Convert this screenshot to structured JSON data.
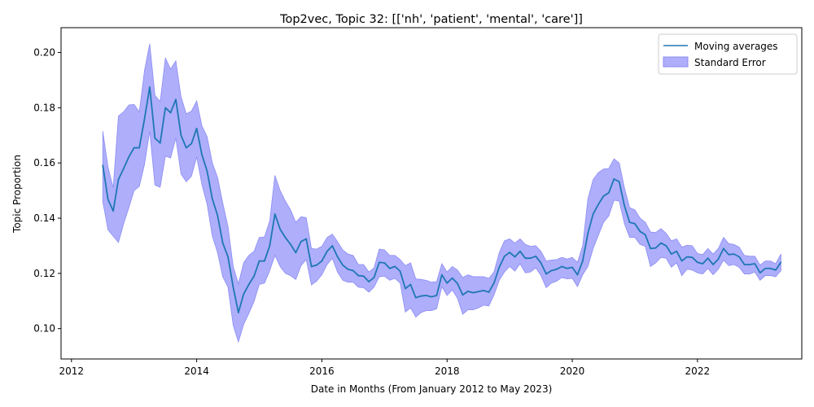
{
  "chart_data": {
    "type": "line",
    "title": "Top2vec, Topic 32: [['nh', 'patient', 'mental', 'care']]",
    "xlabel": "Date in Months (From January 2012 to May 2023)",
    "ylabel": "Topic Proportion",
    "xlim": [
      "2011-11",
      "2023-09"
    ],
    "ylim": [
      0.089,
      0.209
    ],
    "x_ticks": [
      "2012",
      "2014",
      "2016",
      "2018",
      "2020",
      "2022"
    ],
    "y_ticks": [
      "0.10",
      "0.12",
      "0.14",
      "0.16",
      "0.18",
      "0.20"
    ],
    "grid": false,
    "legend": {
      "position": "top-right",
      "entries": [
        "Moving averages",
        "Standard Error"
      ]
    },
    "colors": {
      "line": "#1f77b4",
      "band": "#aeaefb",
      "band_edge": "#8c8cf5"
    },
    "series": [
      {
        "name": "Moving averages",
        "x": [
          "2012-07",
          "2012-08",
          "2012-09",
          "2012-10",
          "2012-11",
          "2012-12",
          "2013-01",
          "2013-02",
          "2013-03",
          "2013-04",
          "2013-05",
          "2013-06",
          "2013-07",
          "2013-08",
          "2013-09",
          "2013-10",
          "2013-11",
          "2013-12",
          "2014-01",
          "2014-02",
          "2014-03",
          "2014-04",
          "2014-05",
          "2014-06",
          "2014-07",
          "2014-08",
          "2014-09",
          "2014-10",
          "2014-11",
          "2014-12",
          "2015-01",
          "2015-02",
          "2015-03",
          "2015-04",
          "2015-05",
          "2015-06",
          "2015-07",
          "2015-08",
          "2015-09",
          "2015-10",
          "2015-11",
          "2015-12",
          "2016-01",
          "2016-02",
          "2016-03",
          "2016-04",
          "2016-05",
          "2016-06",
          "2016-07",
          "2016-08",
          "2016-09",
          "2016-10",
          "2016-11",
          "2016-12",
          "2017-01",
          "2017-02",
          "2017-03",
          "2017-04",
          "2017-05",
          "2017-06",
          "2017-07",
          "2017-08",
          "2017-09",
          "2017-10",
          "2017-11",
          "2017-12",
          "2018-01",
          "2018-02",
          "2018-03",
          "2018-04",
          "2018-05",
          "2018-06",
          "2018-07",
          "2018-08",
          "2018-09",
          "2018-10",
          "2018-11",
          "2018-12",
          "2019-01",
          "2019-02",
          "2019-03",
          "2019-04",
          "2019-05",
          "2019-06",
          "2019-07",
          "2019-08",
          "2019-09",
          "2019-10",
          "2019-11",
          "2019-12",
          "2020-01",
          "2020-02",
          "2020-03",
          "2020-04",
          "2020-05",
          "2020-06",
          "2020-07",
          "2020-08",
          "2020-09",
          "2020-10",
          "2020-11",
          "2020-12",
          "2021-01",
          "2021-02",
          "2021-03",
          "2021-04",
          "2021-05",
          "2021-06",
          "2021-07",
          "2021-08",
          "2021-09",
          "2021-10",
          "2021-11",
          "2021-12",
          "2022-01",
          "2022-02",
          "2022-03",
          "2022-04",
          "2022-05",
          "2022-06",
          "2022-07",
          "2022-08",
          "2022-09",
          "2022-10",
          "2022-11",
          "2022-12",
          "2023-01",
          "2023-02",
          "2023-03",
          "2023-04",
          "2023-05"
        ],
        "y": [
          0.1592,
          0.1468,
          0.1426,
          0.154,
          0.158,
          0.1622,
          0.1655,
          0.1655,
          0.176,
          0.1875,
          0.169,
          0.1672,
          0.18,
          0.1782,
          0.183,
          0.17,
          0.1655,
          0.167,
          0.1725,
          0.163,
          0.157,
          0.147,
          0.141,
          0.131,
          0.126,
          0.115,
          0.1058,
          0.1125,
          0.116,
          0.119,
          0.1245,
          0.1245,
          0.13,
          0.1415,
          0.136,
          0.133,
          0.1305,
          0.1275,
          0.1315,
          0.1325,
          0.1225,
          0.123,
          0.1245,
          0.128,
          0.13,
          0.126,
          0.123,
          0.1215,
          0.121,
          0.1192,
          0.119,
          0.117,
          0.1185,
          0.124,
          0.1238,
          0.1218,
          0.1225,
          0.1208,
          0.1145,
          0.116,
          0.1112,
          0.1118,
          0.112,
          0.1115,
          0.112,
          0.1195,
          0.1165,
          0.1183,
          0.1163,
          0.1122,
          0.1135,
          0.113,
          0.1134,
          0.1138,
          0.1132,
          0.1165,
          0.1222,
          0.1262,
          0.1276,
          0.126,
          0.128,
          0.1255,
          0.1255,
          0.1262,
          0.1238,
          0.1198,
          0.121,
          0.1215,
          0.1225,
          0.1218,
          0.1222,
          0.1195,
          0.1245,
          0.1345,
          0.1415,
          0.145,
          0.148,
          0.1492,
          0.1542,
          0.1532,
          0.1445,
          0.1385,
          0.138,
          0.1352,
          0.134,
          0.129,
          0.1292,
          0.131,
          0.13,
          0.127,
          0.128,
          0.1245,
          0.126,
          0.1258,
          0.124,
          0.1235,
          0.1255,
          0.1232,
          0.1252,
          0.129,
          0.1268,
          0.127,
          0.126,
          0.1232,
          0.1232,
          0.1235,
          0.1202,
          0.1218,
          0.1218,
          0.1212,
          0.124
        ]
      },
      {
        "name": "Standard Error",
        "x": [
          "2012-07",
          "2012-08",
          "2012-09",
          "2012-10",
          "2012-11",
          "2012-12",
          "2013-01",
          "2013-02",
          "2013-03",
          "2013-04",
          "2013-05",
          "2013-06",
          "2013-07",
          "2013-08",
          "2013-09",
          "2013-10",
          "2013-11",
          "2013-12",
          "2014-01",
          "2014-02",
          "2014-03",
          "2014-04",
          "2014-05",
          "2014-06",
          "2014-07",
          "2014-08",
          "2014-09",
          "2014-10",
          "2014-11",
          "2014-12",
          "2015-01",
          "2015-02",
          "2015-03",
          "2015-04",
          "2015-05",
          "2015-06",
          "2015-07",
          "2015-08",
          "2015-09",
          "2015-10",
          "2015-11",
          "2015-12",
          "2016-01",
          "2016-02",
          "2016-03",
          "2016-04",
          "2016-05",
          "2016-06",
          "2016-07",
          "2016-08",
          "2016-09",
          "2016-10",
          "2016-11",
          "2016-12",
          "2017-01",
          "2017-02",
          "2017-03",
          "2017-04",
          "2017-05",
          "2017-06",
          "2017-07",
          "2017-08",
          "2017-09",
          "2017-10",
          "2017-11",
          "2017-12",
          "2018-01",
          "2018-02",
          "2018-03",
          "2018-04",
          "2018-05",
          "2018-06",
          "2018-07",
          "2018-08",
          "2018-09",
          "2018-10",
          "2018-11",
          "2018-12",
          "2019-01",
          "2019-02",
          "2019-03",
          "2019-04",
          "2019-05",
          "2019-06",
          "2019-07",
          "2019-08",
          "2019-09",
          "2019-10",
          "2019-11",
          "2019-12",
          "2020-01",
          "2020-02",
          "2020-03",
          "2020-04",
          "2020-05",
          "2020-06",
          "2020-07",
          "2020-08",
          "2020-09",
          "2020-10",
          "2020-11",
          "2020-12",
          "2021-01",
          "2021-02",
          "2021-03",
          "2021-04",
          "2021-05",
          "2021-06",
          "2021-07",
          "2021-08",
          "2021-09",
          "2021-10",
          "2021-11",
          "2021-12",
          "2022-01",
          "2022-02",
          "2022-03",
          "2022-04",
          "2022-05",
          "2022-06",
          "2022-07",
          "2022-08",
          "2022-09",
          "2022-10",
          "2022-11",
          "2022-12",
          "2023-01",
          "2023-02",
          "2023-03",
          "2023-04",
          "2023-05"
        ],
        "upper": [
          0.1715,
          0.1585,
          0.151,
          0.177,
          0.1785,
          0.181,
          0.1812,
          0.1785,
          0.1935,
          0.2032,
          0.1845,
          0.1822,
          0.198,
          0.194,
          0.197,
          0.184,
          0.1778,
          0.1788,
          0.1825,
          0.1735,
          0.1695,
          0.16,
          0.1548,
          0.1455,
          0.137,
          0.1225,
          0.1162,
          0.1238,
          0.1265,
          0.128,
          0.133,
          0.1332,
          0.139,
          0.1555,
          0.15,
          0.1462,
          0.143,
          0.1385,
          0.1405,
          0.1402,
          0.129,
          0.1288,
          0.1298,
          0.133,
          0.1342,
          0.1315,
          0.1285,
          0.127,
          0.1265,
          0.1232,
          0.1232,
          0.1205,
          0.122,
          0.1288,
          0.1285,
          0.1265,
          0.1265,
          0.125,
          0.1228,
          0.1238,
          0.118,
          0.1178,
          0.1175,
          0.1168,
          0.117,
          0.1235,
          0.1205,
          0.1225,
          0.1212,
          0.1185,
          0.1195,
          0.1188,
          0.1188,
          0.1188,
          0.1182,
          0.1205,
          0.1275,
          0.1318,
          0.1325,
          0.131,
          0.1325,
          0.1305,
          0.1298,
          0.13,
          0.128,
          0.1245,
          0.1248,
          0.125,
          0.1258,
          0.1252,
          0.1258,
          0.124,
          0.13,
          0.147,
          0.154,
          0.1565,
          0.1578,
          0.158,
          0.1615,
          0.16,
          0.151,
          0.1438,
          0.143,
          0.14,
          0.1385,
          0.135,
          0.1348,
          0.1362,
          0.1345,
          0.1318,
          0.1325,
          0.1295,
          0.1302,
          0.13,
          0.1272,
          0.1268,
          0.129,
          0.127,
          0.129,
          0.133,
          0.1308,
          0.1305,
          0.1295,
          0.1265,
          0.1262,
          0.1262,
          0.123,
          0.1245,
          0.1245,
          0.1235,
          0.127
        ],
        "lower": [
          0.146,
          0.1358,
          0.1335,
          0.1312,
          0.138,
          0.1438,
          0.15,
          0.1515,
          0.1595,
          0.1715,
          0.152,
          0.1512,
          0.1625,
          0.1618,
          0.169,
          0.156,
          0.1532,
          0.1552,
          0.1622,
          0.1522,
          0.145,
          0.1335,
          0.1275,
          0.1188,
          0.115,
          0.1012,
          0.0952,
          0.1015,
          0.1055,
          0.1098,
          0.116,
          0.1165,
          0.121,
          0.1265,
          0.1225,
          0.12,
          0.1192,
          0.1178,
          0.1228,
          0.125,
          0.1158,
          0.1172,
          0.1195,
          0.1232,
          0.1255,
          0.1205,
          0.1175,
          0.1168,
          0.1168,
          0.115,
          0.1148,
          0.1132,
          0.115,
          0.1188,
          0.119,
          0.1175,
          0.1182,
          0.1165,
          0.106,
          0.1075,
          0.1042,
          0.1058,
          0.1065,
          0.1065,
          0.1072,
          0.1152,
          0.112,
          0.114,
          0.111,
          0.1052,
          0.1068,
          0.1068,
          0.1075,
          0.1085,
          0.1082,
          0.1122,
          0.1175,
          0.1205,
          0.1225,
          0.1208,
          0.1235,
          0.1202,
          0.1205,
          0.122,
          0.1192,
          0.1148,
          0.1165,
          0.1172,
          0.1185,
          0.118,
          0.1182,
          0.1152,
          0.1195,
          0.1225,
          0.129,
          0.1338,
          0.1385,
          0.1408,
          0.1465,
          0.1462,
          0.138,
          0.133,
          0.133,
          0.1305,
          0.1298,
          0.1225,
          0.1238,
          0.1258,
          0.1255,
          0.1222,
          0.1238,
          0.1192,
          0.1215,
          0.1212,
          0.1202,
          0.1198,
          0.1218,
          0.1195,
          0.1215,
          0.1248,
          0.1228,
          0.1232,
          0.1222,
          0.1198,
          0.1198,
          0.1205,
          0.1175,
          0.1192,
          0.1192,
          0.1188,
          0.121
        ]
      }
    ]
  }
}
